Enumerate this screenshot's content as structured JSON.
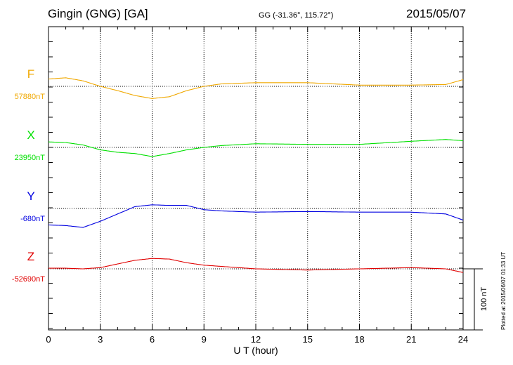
{
  "header": {
    "station": "Gingin (GNG)  [GA]",
    "coords": "GG (-31.36°, 115.72°)",
    "date": "2015/05/07"
  },
  "plotted": "Plotted at 2015/06/07 01:33 UT",
  "chart_data": {
    "type": "line",
    "xlabel": "U T (hour)",
    "xlim": [
      0,
      24
    ],
    "xticks": [
      "0",
      "3",
      "6",
      "9",
      "12",
      "15",
      "18",
      "21",
      "24"
    ],
    "grid": true,
    "scale_bar": "100 nT",
    "series": [
      {
        "name": "F",
        "baseline_label": "57880nT",
        "color": "#f0a800",
        "x": [
          0,
          1,
          2,
          3,
          4,
          5,
          6,
          7,
          8,
          9,
          10,
          12,
          15,
          18,
          21,
          23,
          24
        ],
        "y": [
          12,
          14,
          9,
          0,
          -7,
          -15,
          -20,
          -17,
          -7,
          0,
          4,
          6,
          6,
          2,
          2,
          3,
          11
        ]
      },
      {
        "name": "X",
        "baseline_label": "23950nT",
        "color": "#00e000",
        "x": [
          0,
          1,
          2,
          3,
          4,
          5,
          6,
          7,
          8,
          9,
          10,
          12,
          15,
          18,
          21,
          23,
          24
        ],
        "y": [
          9,
          8,
          4,
          -4,
          -8,
          -10,
          -15,
          -10,
          -4,
          0,
          3,
          6,
          5,
          5,
          10,
          13,
          11
        ]
      },
      {
        "name": "Y",
        "baseline_label": "-680nT",
        "color": "#0000e0",
        "x": [
          0,
          1,
          2,
          3,
          4,
          5,
          6,
          7,
          8,
          9,
          10,
          12,
          15,
          18,
          21,
          23,
          24
        ],
        "y": [
          -27,
          -28,
          -31,
          -21,
          -9,
          3,
          6,
          5,
          5,
          -2,
          -4,
          -6,
          -5,
          -6,
          -6,
          -9,
          -19
        ]
      },
      {
        "name": "Z",
        "baseline_label": "-52690nT",
        "color": "#e00000",
        "x": [
          0,
          1,
          2,
          3,
          4,
          5,
          6,
          7,
          8,
          9,
          10,
          12,
          15,
          18,
          21,
          23,
          24
        ],
        "y": [
          1,
          1,
          0,
          2,
          8,
          14,
          17,
          16,
          10,
          6,
          4,
          0,
          -2,
          0,
          2,
          0,
          -6
        ]
      }
    ]
  }
}
